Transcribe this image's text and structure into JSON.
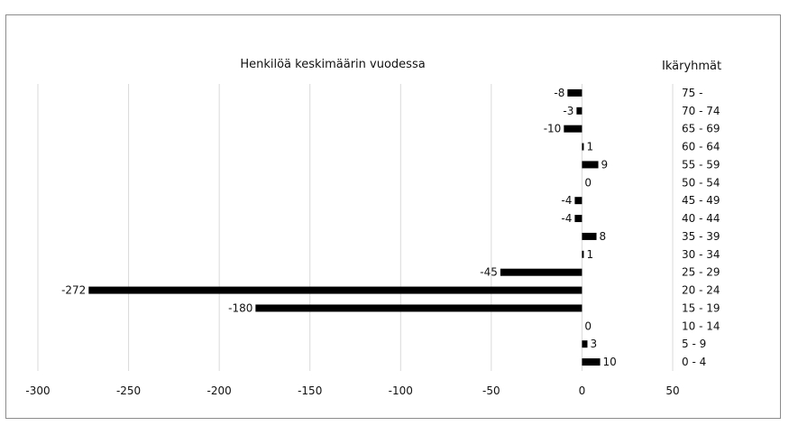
{
  "chart_data": {
    "type": "bar",
    "orientation": "horizontal",
    "title": "Henkilöä keskimäärin vuodessa",
    "category_axis_title": "Ikäryhmät",
    "categories": [
      "75 -",
      "70 - 74",
      "65 - 69",
      "60 - 64",
      "55 - 59",
      "50 - 54",
      "45 - 49",
      "40 - 44",
      "35 - 39",
      "30 - 34",
      "25 - 29",
      "20 - 24",
      "15 - 19",
      "10 - 14",
      "5 - 9",
      "0 - 4"
    ],
    "values": [
      -8,
      -3,
      -10,
      1,
      9,
      0,
      -4,
      -4,
      8,
      1,
      -45,
      -272,
      -180,
      0,
      3,
      10
    ],
    "data_labels": [
      "-8",
      "-3",
      "-10",
      "1",
      "9",
      "0",
      "-4",
      "-4",
      "8",
      "1",
      "-45",
      "-272",
      "-180",
      "0",
      "3",
      "10"
    ],
    "xlim": [
      -300,
      50
    ],
    "xticks": [
      "-300",
      "-250",
      "-200",
      "-150",
      "-100",
      "-50",
      "0",
      "50"
    ],
    "grid": "vertical",
    "legend": "none",
    "bar_color": "#000000",
    "grid_color": "#d9d9d9"
  }
}
